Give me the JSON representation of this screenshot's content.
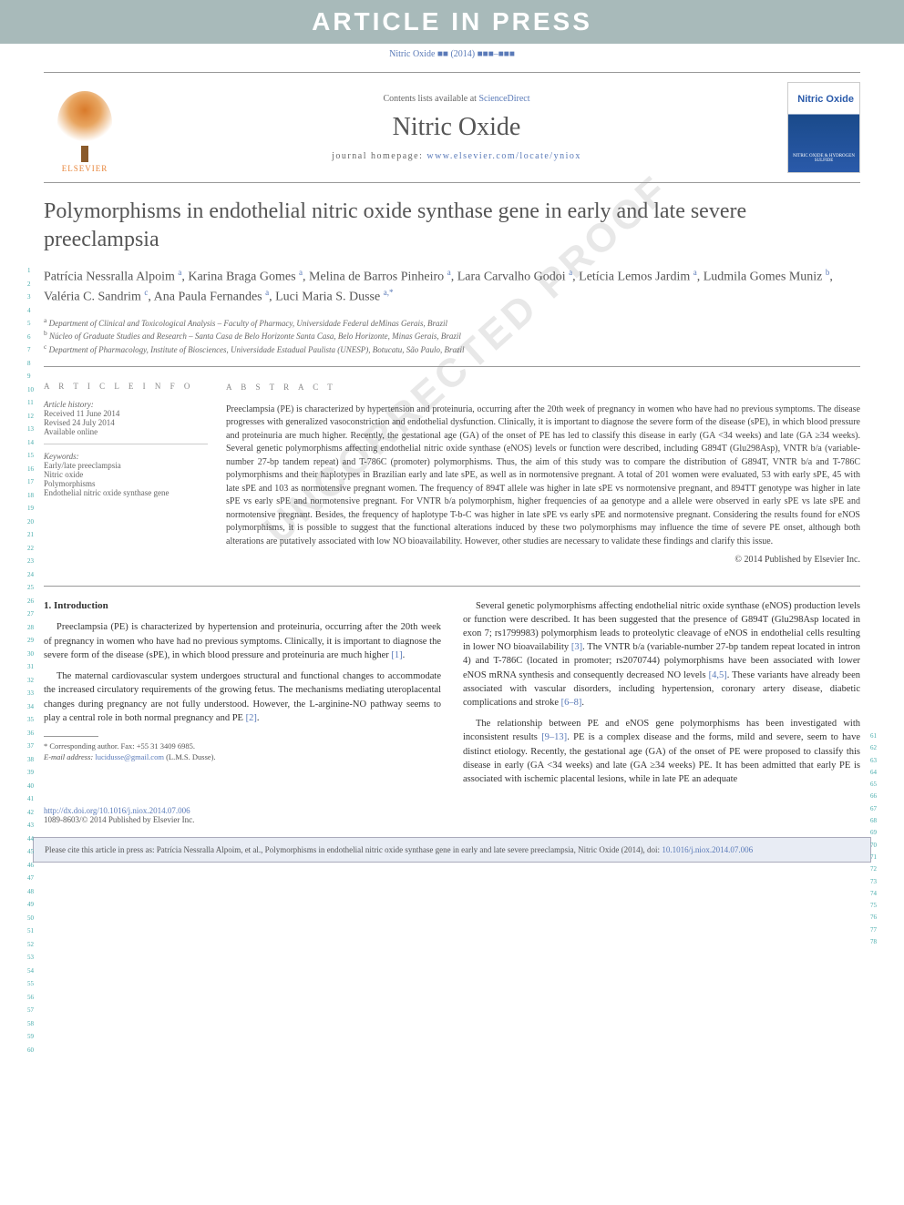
{
  "banner": "ARTICLE IN PRESS",
  "top_citation": "Nitric Oxide ■■ (2014) ■■■–■■■",
  "header": {
    "contents_prefix": "Contents lists available at ",
    "contents_link": "ScienceDirect",
    "journal": "Nitric Oxide",
    "homepage_prefix": "journal homepage: ",
    "homepage_link": "www.elsevier.com/locate/yniox",
    "elsevier": "ELSEVIER",
    "cover_title": "Nitric Oxide",
    "cover_sub": "NITRIC OXIDE & HYDROGEN SULFIDE"
  },
  "title": "Polymorphisms in endothelial nitric oxide synthase gene in early and late severe preeclampsia",
  "authors_html": "Patrícia Nessralla Alpoim <sup>a</sup>, Karina Braga Gomes <sup>a</sup>, Melina de Barros Pinheiro <sup>a</sup>, Lara Carvalho Godoi <sup>a</sup>, Letícia Lemos Jardim <sup>a</sup>, Ludmila Gomes Muniz <sup>b</sup>, Valéria C. Sandrim <sup>c</sup>, Ana Paula Fernandes <sup>a</sup>, Luci Maria S. Dusse <sup>a,*</sup>",
  "affiliations": [
    "a Department of Clinical and Toxicological Analysis – Faculty of Pharmacy, Universidade Federal deMinas Gerais, Brazil",
    "b Núcleo of Graduate Studies and Research – Santa Casa de Belo Horizonte Santa Casa, Belo Horizonte, Minas Gerais, Brazil",
    "c Department of Pharmacology, Institute of Biosciences, Universidade Estadual Paulista (UNESP), Botucatu, São Paulo, Brazil"
  ],
  "article_info": {
    "heading": "A R T I C L E   I N F O",
    "history_label": "Article history:",
    "history": [
      "Received 11 June 2014",
      "Revised 24 July 2014",
      "Available online"
    ],
    "keywords_label": "Keywords:",
    "keywords": [
      "Early/late preeclampsia",
      "Nitric oxide",
      "Polymorphisms",
      "Endothelial nitric oxide synthase gene"
    ]
  },
  "abstract": {
    "heading": "A B S T R A C T",
    "text": "Preeclampsia (PE) is characterized by hypertension and proteinuria, occurring after the 20th week of pregnancy in women who have had no previous symptoms. The disease progresses with generalized vasoconstriction and endothelial dysfunction. Clinically, it is important to diagnose the severe form of the disease (sPE), in which blood pressure and proteinuria are much higher. Recently, the gestational age (GA) of the onset of PE has led to classify this disease in early (GA <34 weeks) and late (GA ≥34 weeks). Several genetic polymorphisms affecting endothelial nitric oxide synthase (eNOS) levels or function were described, including G894T (Glu298Asp), VNTR b/a (variable-number 27-bp tandem repeat) and T-786C (promoter) polymorphisms. Thus, the aim of this study was to compare the distribution of G894T, VNTR b/a and T-786C polymorphisms and their haplotypes in Brazilian early and late sPE, as well as in normotensive pregnant. A total of 201 women were evaluated, 53 with early sPE, 45 with late sPE and 103 as normotensive pregnant women. The frequency of 894T allele was higher in late sPE vs normotensive pregnant, and 894TT genotype was higher in late sPE vs early sPE and normotensive pregnant. For VNTR b/a polymorphism, higher frequencies of aa genotype and a allele were observed in early sPE vs late sPE and normotensive pregnant. Besides, the frequency of haplotype T-b-C was higher in late sPE vs early sPE and normotensive pregnant. Considering the results found for eNOS polymorphisms, it is possible to suggest that the functional alterations induced by these two polymorphisms may influence the time of severe PE onset, although both alterations are putatively associated with low NO bioavailability. However, other studies are necessary to validate these findings and clarify this issue.",
    "copyright": "© 2014 Published by Elsevier Inc."
  },
  "body": {
    "intro_heading": "1. Introduction",
    "left_paras": [
      "Preeclampsia (PE) is characterized by hypertension and proteinuria, occurring after the 20th week of pregnancy in women who have had no previous symptoms. Clinically, it is important to diagnose the severe form of the disease (sPE), in which blood pressure and proteinuria are much higher [1].",
      "The maternal cardiovascular system undergoes structural and functional changes to accommodate the increased circulatory requirements of the growing fetus. The mechanisms mediating uteroplacental changes during pregnancy are not fully understood. However, the L-arginine-NO pathway seems to play a central role in both normal pregnancy and PE [2]."
    ],
    "right_paras": [
      "Several genetic polymorphisms affecting endothelial nitric oxide synthase (eNOS) production levels or function were described. It has been suggested that the presence of G894T (Glu298Asp located in exon 7; rs1799983) polymorphism leads to proteolytic cleavage of eNOS in endothelial cells resulting in lower NO bioavailability [3]. The VNTR b/a (variable-number 27-bp tandem repeat located in intron 4) and T-786C (located in promoter; rs2070744) polymorphisms have been associated with lower eNOS mRNA synthesis and consequently decreased NO levels [4,5]. These variants have already been associated with vascular disorders, including hypertension, coronary artery disease, diabetic complications and stroke [6–8].",
      "The relationship between PE and eNOS gene polymorphisms has been investigated with inconsistent results [9–13]. PE is a complex disease and the forms, mild and severe, seem to have distinct etiology. Recently, the gestational age (GA) of the onset of PE were proposed to classify this disease in early (GA <34 weeks) and late (GA ≥34 weeks) PE. It has been admitted that early PE is associated with ischemic placental lesions, while in late PE an adequate"
    ]
  },
  "footnote": {
    "corr": "* Corresponding author. Fax: +55 31 3409 6985.",
    "email_label": "E-mail address: ",
    "email": "lucidusse@gmail.com",
    "email_suffix": " (L.M.S. Dusse)."
  },
  "doi": {
    "link": "http://dx.doi.org/10.1016/j.niox.2014.07.006",
    "issn": "1089-8603/© 2014 Published by Elsevier Inc."
  },
  "cite_box": {
    "text": "Please cite this article in press as: Patrícia Nessralla Alpoim, et al., Polymorphisms in endothelial nitric oxide synthase gene in early and late severe preeclampsia, Nitric Oxide (2014), doi: ",
    "doi": "10.1016/j.niox.2014.07.006"
  },
  "line_numbers": {
    "left_start": 1,
    "left_end": 60,
    "right_start": 61,
    "right_end": 78
  },
  "watermark": "UNCORRECTED PROOF"
}
